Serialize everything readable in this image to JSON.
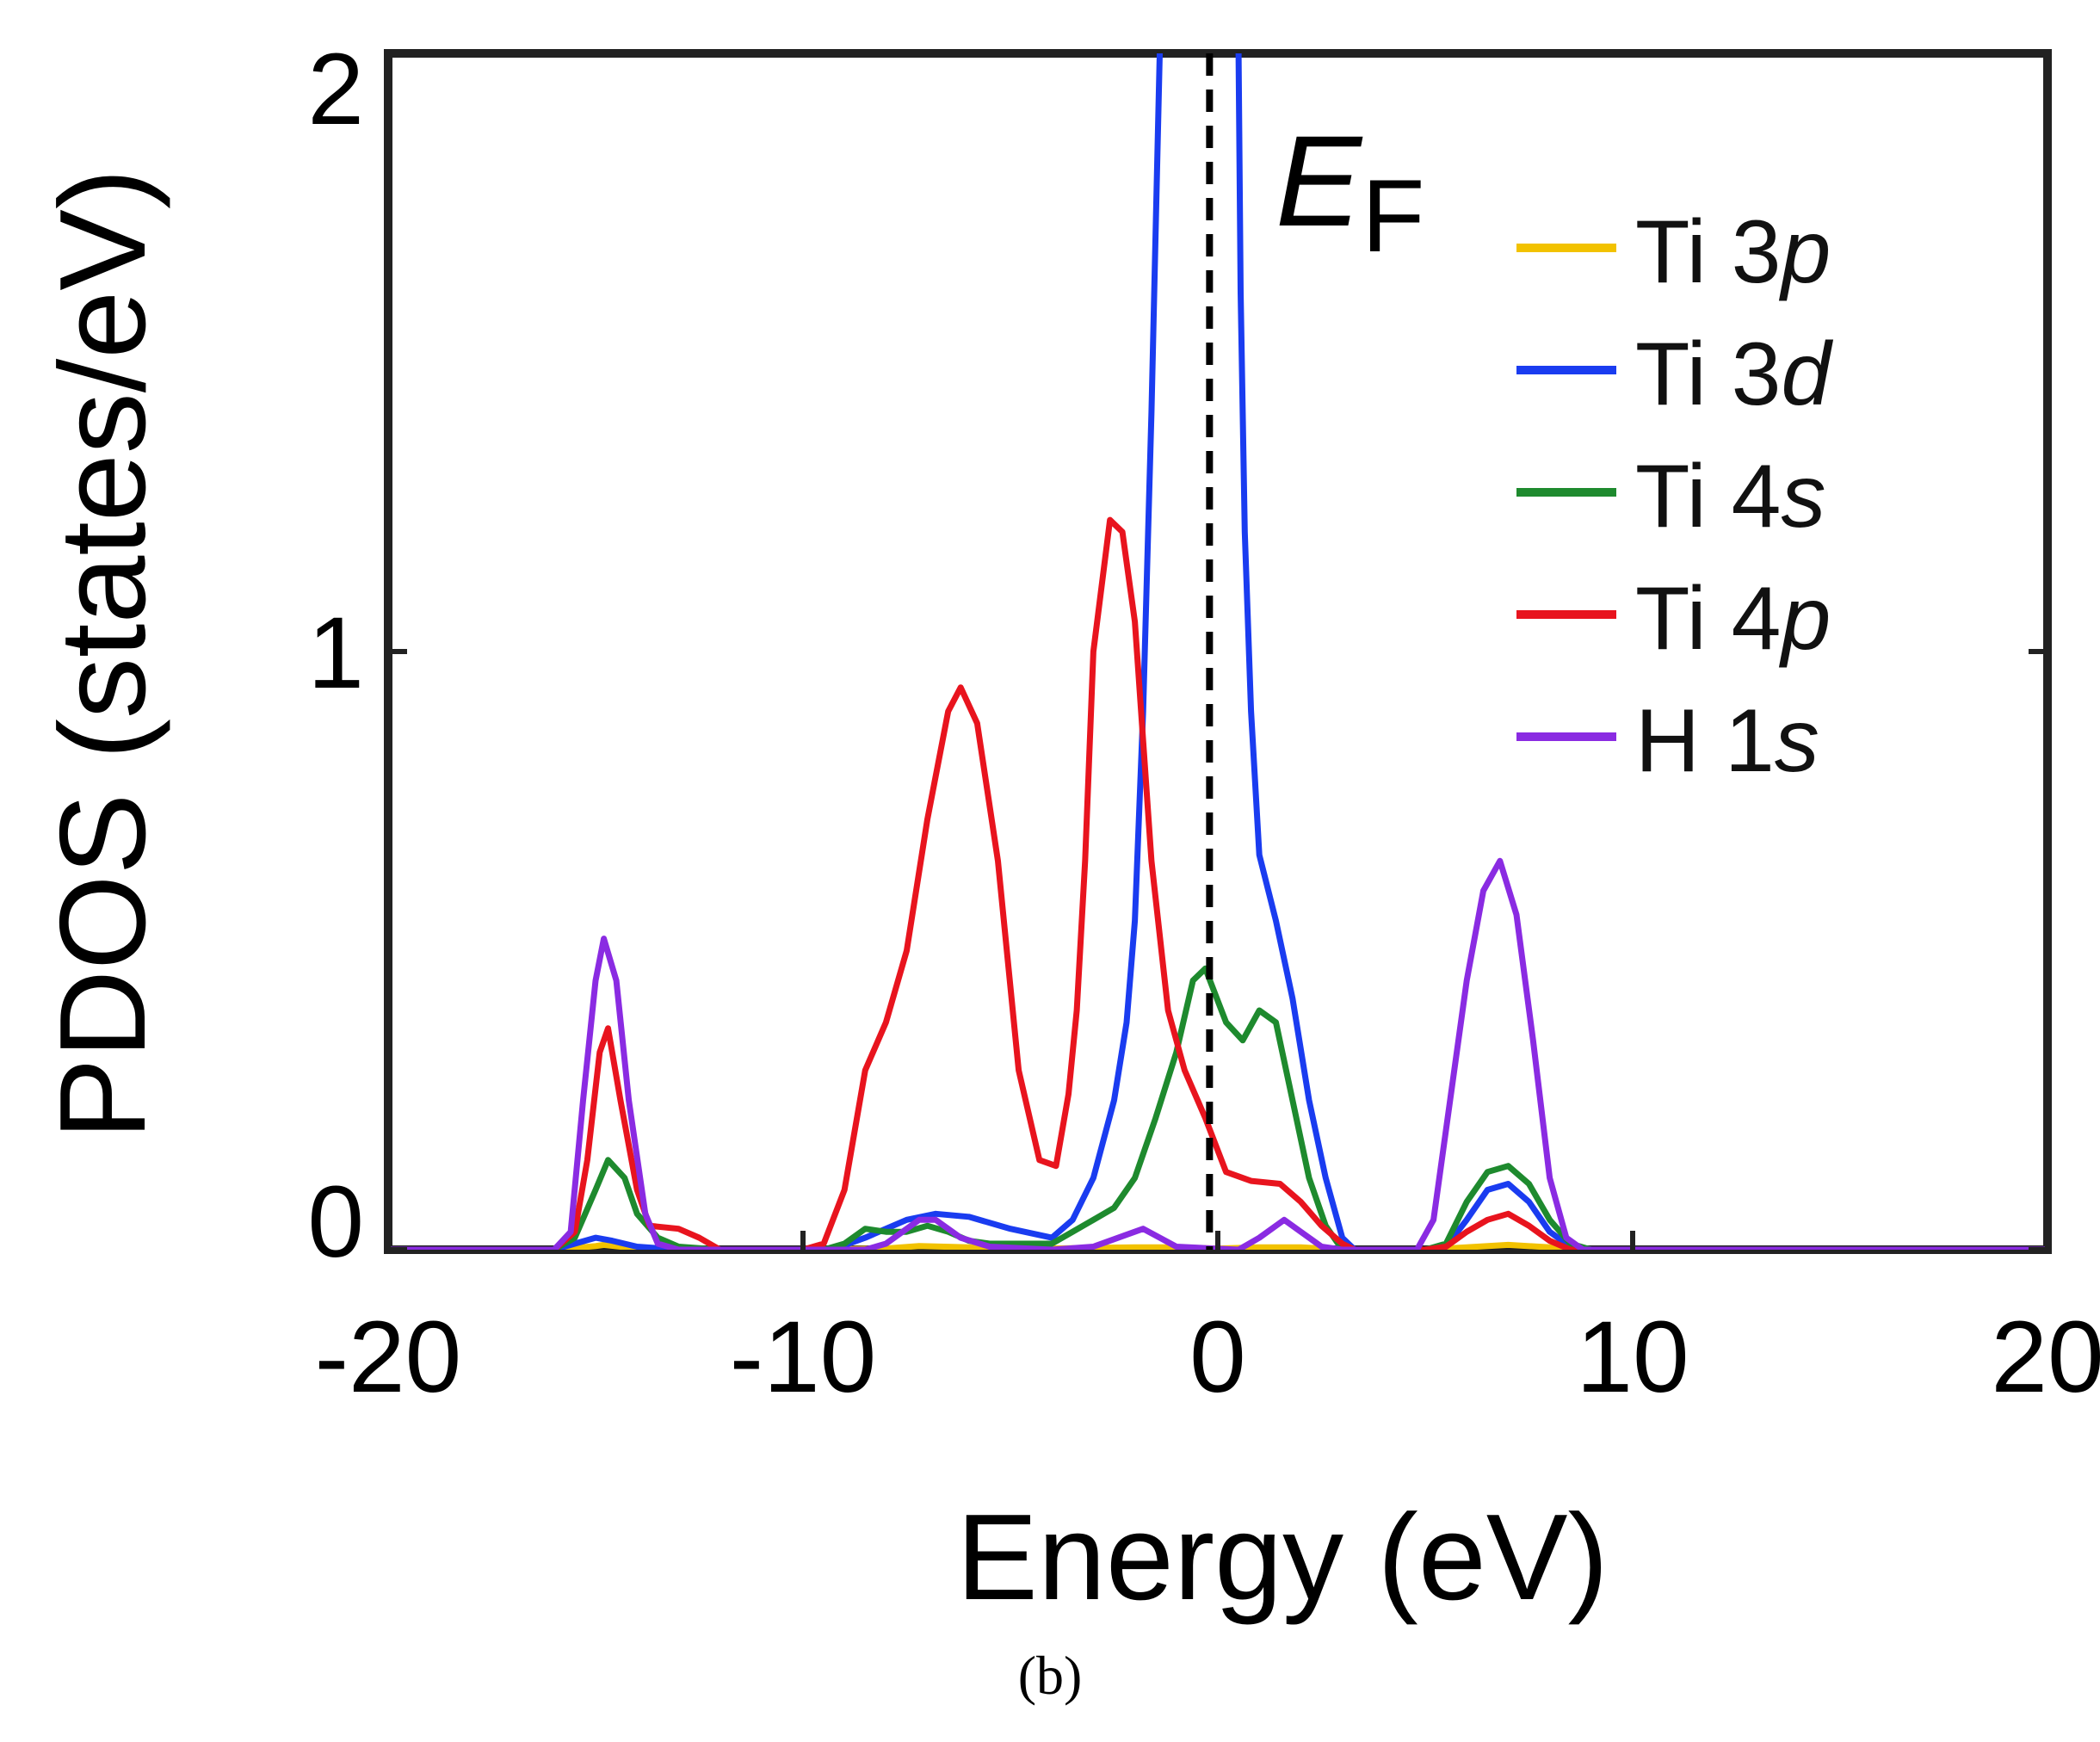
{
  "chart_data": {
    "type": "line",
    "title": "",
    "xlabel": "Energy (eV)",
    "ylabel": "PDOS (states/eV)",
    "xlim": [
      -20,
      20
    ],
    "ylim": [
      0,
      2
    ],
    "xticks": [
      -20,
      -10,
      0,
      10,
      20
    ],
    "yticks": [
      0,
      1,
      2
    ],
    "xtick_labels": [
      "-20",
      "-10",
      "0",
      "10",
      "20"
    ],
    "ytick_labels": [
      "0",
      "1",
      "2"
    ],
    "fermi_level": {
      "x": -0.2,
      "label_main": "E",
      "label_sub": "F",
      "style": "dashed",
      "color": "#000000"
    },
    "legend_position": "top-right",
    "series": [
      {
        "name": "Ti 3p",
        "label_main": "Ti 3",
        "label_orb": "p",
        "color": "#f2c200",
        "points": [
          [
            -20,
            0
          ],
          [
            -16,
            0
          ],
          [
            -15,
            0.006
          ],
          [
            -14.8,
            0.008
          ],
          [
            -14,
            0.002
          ],
          [
            -13,
            0
          ],
          [
            -10,
            0
          ],
          [
            -8,
            0.002
          ],
          [
            -7.2,
            0.006
          ],
          [
            -6,
            0.004
          ],
          [
            -4,
            0.002
          ],
          [
            -2,
            0.004
          ],
          [
            -1,
            0.004
          ],
          [
            0,
            0.002
          ],
          [
            1,
            0.004
          ],
          [
            2,
            0.004
          ],
          [
            3,
            0
          ],
          [
            5,
            0
          ],
          [
            6,
            0.004
          ],
          [
            7,
            0.008
          ],
          [
            8,
            0.004
          ],
          [
            9,
            0
          ],
          [
            20,
            0
          ]
        ]
      },
      {
        "name": "Ti 3d",
        "label_main": "Ti 3",
        "label_orb": "d",
        "color": "#1a3cf0",
        "points": [
          [
            -20,
            0
          ],
          [
            -16,
            0
          ],
          [
            -15.5,
            0.01
          ],
          [
            -15,
            0.02
          ],
          [
            -14.6,
            0.015
          ],
          [
            -14,
            0.005
          ],
          [
            -13,
            0
          ],
          [
            -10,
            0
          ],
          [
            -9.3,
            0
          ],
          [
            -8.5,
            0.02
          ],
          [
            -7.5,
            0.05
          ],
          [
            -6.8,
            0.06
          ],
          [
            -6,
            0.055
          ],
          [
            -5,
            0.035
          ],
          [
            -4,
            0.02
          ],
          [
            -3.5,
            0.05
          ],
          [
            -3,
            0.12
          ],
          [
            -2.5,
            0.25
          ],
          [
            -2.2,
            0.38
          ],
          [
            -2,
            0.55
          ],
          [
            -1.8,
            0.9
          ],
          [
            -1.6,
            1.4
          ],
          [
            -1.4,
            2.0
          ],
          [
            -1.35,
            2.1
          ],
          [
            0.45,
            2.1
          ],
          [
            0.5,
            2.0
          ],
          [
            0.55,
            1.6
          ],
          [
            0.65,
            1.2
          ],
          [
            0.8,
            0.9
          ],
          [
            1,
            0.66
          ],
          [
            1.4,
            0.55
          ],
          [
            1.8,
            0.42
          ],
          [
            2.2,
            0.25
          ],
          [
            2.6,
            0.12
          ],
          [
            3,
            0.02
          ],
          [
            3.3,
            0
          ],
          [
            5,
            0
          ],
          [
            5.5,
            0.005
          ],
          [
            6,
            0.05
          ],
          [
            6.5,
            0.1
          ],
          [
            7,
            0.11
          ],
          [
            7.5,
            0.08
          ],
          [
            8,
            0.03
          ],
          [
            8.5,
            0.005
          ],
          [
            9,
            0
          ],
          [
            20,
            0
          ]
        ]
      },
      {
        "name": "Ti 4s",
        "label_main": "Ti 4",
        "label_orb": "s",
        "color": "#1e8a2e",
        "points": [
          [
            -20,
            0
          ],
          [
            -16,
            0
          ],
          [
            -15.5,
            0.02
          ],
          [
            -15,
            0.1
          ],
          [
            -14.7,
            0.15
          ],
          [
            -14.3,
            0.12
          ],
          [
            -14,
            0.06
          ],
          [
            -13.5,
            0.02
          ],
          [
            -13,
            0.005
          ],
          [
            -12,
            0
          ],
          [
            -9.5,
            0
          ],
          [
            -9,
            0.01
          ],
          [
            -8.5,
            0.035
          ],
          [
            -8,
            0.03
          ],
          [
            -7.5,
            0.03
          ],
          [
            -7,
            0.04
          ],
          [
            -6.5,
            0.03
          ],
          [
            -6,
            0.015
          ],
          [
            -5.5,
            0.01
          ],
          [
            -4,
            0.01
          ],
          [
            -3.5,
            0.03
          ],
          [
            -3,
            0.05
          ],
          [
            -2.5,
            0.07
          ],
          [
            -2,
            0.12
          ],
          [
            -1.5,
            0.22
          ],
          [
            -1,
            0.33
          ],
          [
            -0.6,
            0.45
          ],
          [
            -0.3,
            0.47
          ],
          [
            0.2,
            0.38
          ],
          [
            0.6,
            0.35
          ],
          [
            1,
            0.4
          ],
          [
            1.4,
            0.38
          ],
          [
            1.8,
            0.25
          ],
          [
            2.2,
            0.12
          ],
          [
            2.6,
            0.04
          ],
          [
            3,
            0
          ],
          [
            5,
            0
          ],
          [
            5.5,
            0.01
          ],
          [
            6,
            0.08
          ],
          [
            6.5,
            0.13
          ],
          [
            7,
            0.14
          ],
          [
            7.5,
            0.11
          ],
          [
            8,
            0.05
          ],
          [
            8.5,
            0.01
          ],
          [
            9,
            0
          ],
          [
            20,
            0
          ]
        ]
      },
      {
        "name": "Ti 4p",
        "label_main": "Ti 4",
        "label_orb": "p",
        "color": "#e8141e",
        "points": [
          [
            -20,
            0
          ],
          [
            -16,
            0
          ],
          [
            -15.5,
            0.03
          ],
          [
            -15.2,
            0.15
          ],
          [
            -14.9,
            0.33
          ],
          [
            -14.7,
            0.37
          ],
          [
            -14.4,
            0.25
          ],
          [
            -14,
            0.1
          ],
          [
            -13.7,
            0.04
          ],
          [
            -13,
            0.035
          ],
          [
            -12.5,
            0.02
          ],
          [
            -12,
            0
          ],
          [
            -10,
            0
          ],
          [
            -9.5,
            0.01
          ],
          [
            -9,
            0.1
          ],
          [
            -8.5,
            0.3
          ],
          [
            -8,
            0.38
          ],
          [
            -7.5,
            0.5
          ],
          [
            -7,
            0.72
          ],
          [
            -6.5,
            0.9
          ],
          [
            -6.2,
            0.94
          ],
          [
            -5.8,
            0.88
          ],
          [
            -5.3,
            0.65
          ],
          [
            -4.8,
            0.3
          ],
          [
            -4.3,
            0.15
          ],
          [
            -3.9,
            0.14
          ],
          [
            -3.6,
            0.26
          ],
          [
            -3.4,
            0.4
          ],
          [
            -3.2,
            0.65
          ],
          [
            -3,
            1.0
          ],
          [
            -2.6,
            1.22
          ],
          [
            -2.3,
            1.2
          ],
          [
            -2,
            1.05
          ],
          [
            -1.6,
            0.65
          ],
          [
            -1.2,
            0.4
          ],
          [
            -0.8,
            0.3
          ],
          [
            -0.3,
            0.22
          ],
          [
            0.2,
            0.13
          ],
          [
            0.8,
            0.115
          ],
          [
            1.5,
            0.11
          ],
          [
            2,
            0.08
          ],
          [
            2.5,
            0.04
          ],
          [
            3,
            0.01
          ],
          [
            3.3,
            0
          ],
          [
            5,
            0
          ],
          [
            5.5,
            0.005
          ],
          [
            6,
            0.03
          ],
          [
            6.5,
            0.05
          ],
          [
            7,
            0.06
          ],
          [
            7.5,
            0.04
          ],
          [
            8,
            0.015
          ],
          [
            8.5,
            0
          ],
          [
            20,
            0
          ]
        ]
      },
      {
        "name": "H 1s",
        "label_main": "H 1",
        "label_orb": "s",
        "color": "#8a2be2",
        "points": [
          [
            -20,
            0
          ],
          [
            -16,
            0
          ],
          [
            -15.6,
            0.03
          ],
          [
            -15.3,
            0.25
          ],
          [
            -15,
            0.45
          ],
          [
            -14.8,
            0.52
          ],
          [
            -14.5,
            0.45
          ],
          [
            -14.2,
            0.25
          ],
          [
            -13.8,
            0.06
          ],
          [
            -13.5,
            0.01
          ],
          [
            -13,
            0
          ],
          [
            -10,
            0
          ],
          [
            -8.5,
            0
          ],
          [
            -8,
            0.01
          ],
          [
            -7.2,
            0.05
          ],
          [
            -6.8,
            0.05
          ],
          [
            -6.2,
            0.02
          ],
          [
            -5.5,
            0.005
          ],
          [
            -4,
            0
          ],
          [
            -3,
            0.005
          ],
          [
            -2.2,
            0.025
          ],
          [
            -1.8,
            0.035
          ],
          [
            -1.4,
            0.02
          ],
          [
            -1,
            0.005
          ],
          [
            0.5,
            0
          ],
          [
            1,
            0.02
          ],
          [
            1.6,
            0.05
          ],
          [
            2,
            0.03
          ],
          [
            2.5,
            0.005
          ],
          [
            3,
            0
          ],
          [
            4.8,
            0
          ],
          [
            5.2,
            0.05
          ],
          [
            5.6,
            0.25
          ],
          [
            6,
            0.45
          ],
          [
            6.4,
            0.6
          ],
          [
            6.8,
            0.65
          ],
          [
            7.2,
            0.56
          ],
          [
            7.6,
            0.35
          ],
          [
            8,
            0.12
          ],
          [
            8.4,
            0.02
          ],
          [
            8.8,
            0
          ],
          [
            20,
            0
          ]
        ]
      }
    ]
  },
  "caption": "(b)"
}
